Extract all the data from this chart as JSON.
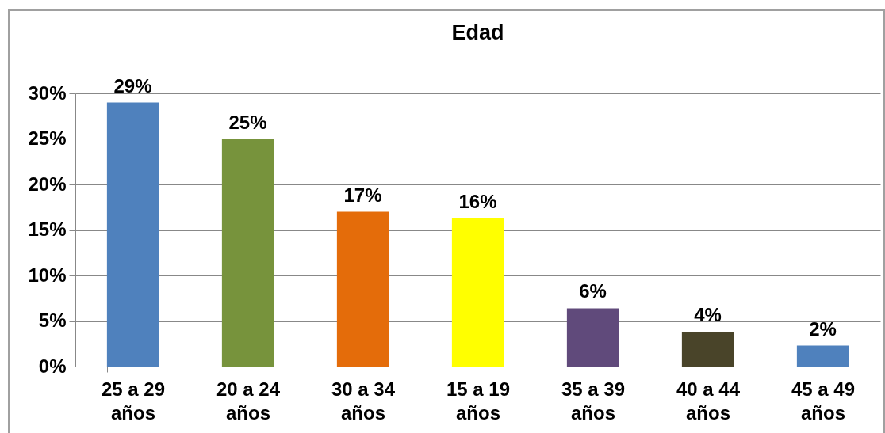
{
  "chart_data": {
    "type": "bar",
    "title": "Edad",
    "categories": [
      "25 a 29 años",
      "20 a 24 años",
      "30 a 34 años",
      "15 a 19 años",
      "35 a 39 años",
      "40 a 44 años",
      "45 a 49 años"
    ],
    "values": [
      29,
      25,
      17,
      16.3,
      6.4,
      3.8,
      2.3
    ],
    "colors": [
      "#4f81bd",
      "#77933c",
      "#e46c0a",
      "#ffff00",
      "#604a7b",
      "#494429",
      "#4f81bd"
    ],
    "value_labels": [
      "29%",
      "25%",
      "17%",
      "16%",
      "6%",
      "4%",
      "2%"
    ],
    "ylim": [
      0,
      30
    ],
    "yticks": [
      {
        "value": 0,
        "label": "0%"
      },
      {
        "value": 5,
        "label": "5%"
      },
      {
        "value": 10,
        "label": "10%"
      },
      {
        "value": 15,
        "label": "15%"
      },
      {
        "value": 20,
        "label": "20%"
      },
      {
        "value": 25,
        "label": "25%"
      },
      {
        "value": 30,
        "label": "30%"
      }
    ],
    "grid": "y",
    "legend": false
  }
}
